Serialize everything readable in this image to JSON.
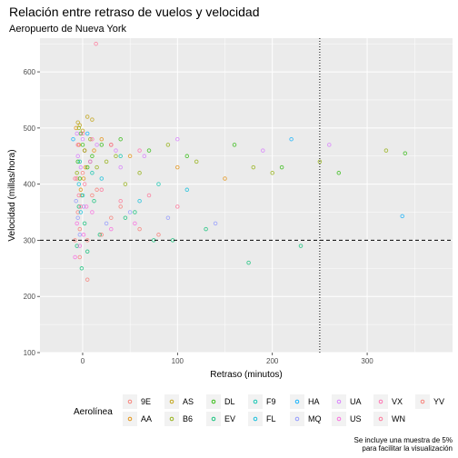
{
  "chart_data": {
    "type": "scatter",
    "title": "Relación entre retraso de vuelos y velocidad",
    "subtitle": "Aeropuerto de Nueva York",
    "xlabel": "Retraso (minutos)",
    "ylabel": "Velocidad (millas/hora)",
    "xlim": [
      -45,
      390
    ],
    "ylim": [
      100,
      660
    ],
    "x_ticks": [
      0,
      100,
      200,
      300
    ],
    "y_ticks": [
      100,
      200,
      300,
      400,
      500,
      600
    ],
    "grid": true,
    "reference_lines": {
      "hline": 300,
      "vline": 250
    },
    "legend": {
      "title": "Aerolínea",
      "position": "bottom",
      "entries": [
        {
          "name": "9E",
          "color": "#F8766D"
        },
        {
          "name": "AA",
          "color": "#E18A00"
        },
        {
          "name": "AS",
          "color": "#BE9C00"
        },
        {
          "name": "B6",
          "color": "#8CAB00"
        },
        {
          "name": "DL",
          "color": "#24B700"
        },
        {
          "name": "EV",
          "color": "#00BE70"
        },
        {
          "name": "F9",
          "color": "#00C1AB"
        },
        {
          "name": "FL",
          "color": "#00BBDA"
        },
        {
          "name": "HA",
          "color": "#00ACFC"
        },
        {
          "name": "MQ",
          "color": "#8B93FF"
        },
        {
          "name": "UA",
          "color": "#D575FE"
        },
        {
          "name": "US",
          "color": "#F962DD"
        },
        {
          "name": "VX",
          "color": "#FF65AC"
        },
        {
          "name": "WN",
          "color": "#FF6C91"
        },
        {
          "name": "YV",
          "color": "#F8766D"
        }
      ]
    },
    "caption": [
      "Se incluye una muestra de 5%",
      "para facilitar la visualización"
    ],
    "series": [
      {
        "name": "9E",
        "points": [
          [
            -5,
            350
          ],
          [
            0,
            420
          ],
          [
            10,
            380
          ],
          [
            30,
            340
          ],
          [
            -8,
            300
          ],
          [
            2,
            460
          ],
          [
            60,
            320
          ],
          [
            -3,
            270
          ],
          [
            15,
            390
          ],
          [
            5,
            230
          ],
          [
            40,
            360
          ],
          [
            80,
            310
          ],
          [
            -6,
            410
          ]
        ]
      },
      {
        "name": "AA",
        "points": [
          [
            -4,
            470
          ],
          [
            3,
            430
          ],
          [
            20,
            480
          ],
          [
            50,
            450
          ],
          [
            -2,
            390
          ],
          [
            8,
            440
          ],
          [
            100,
            430
          ],
          [
            -7,
            500
          ],
          [
            12,
            460
          ],
          [
            150,
            410
          ],
          [
            30,
            470
          ],
          [
            1,
            410
          ]
        ]
      },
      {
        "name": "AS",
        "points": [
          [
            -5,
            510
          ],
          [
            0,
            495
          ],
          [
            5,
            520
          ],
          [
            -3,
            505
          ],
          [
            10,
            515
          ]
        ]
      },
      {
        "name": "B6",
        "points": [
          [
            -6,
            420
          ],
          [
            2,
            460
          ],
          [
            15,
            430
          ],
          [
            35,
            450
          ],
          [
            -1,
            380
          ],
          [
            60,
            420
          ],
          [
            90,
            470
          ],
          [
            120,
            440
          ],
          [
            180,
            430
          ],
          [
            200,
            420
          ],
          [
            250,
            440
          ],
          [
            320,
            460
          ],
          [
            -4,
            500
          ],
          [
            8,
            480
          ],
          [
            45,
            400
          ],
          [
            25,
            440
          ]
        ]
      },
      {
        "name": "DL",
        "points": [
          [
            -5,
            440
          ],
          [
            0,
            470
          ],
          [
            10,
            450
          ],
          [
            40,
            480
          ],
          [
            -3,
            410
          ],
          [
            70,
            460
          ],
          [
            110,
            450
          ],
          [
            160,
            470
          ],
          [
            210,
            430
          ],
          [
            270,
            420
          ],
          [
            340,
            455
          ],
          [
            -2,
            490
          ],
          [
            20,
            470
          ],
          [
            5,
            430
          ]
        ]
      },
      {
        "name": "EV",
        "points": [
          [
            -4,
            360
          ],
          [
            2,
            330
          ],
          [
            18,
            310
          ],
          [
            45,
            340
          ],
          [
            -6,
            290
          ],
          [
            75,
            300
          ],
          [
            130,
            320
          ],
          [
            175,
            260
          ],
          [
            230,
            290
          ],
          [
            -1,
            250
          ],
          [
            12,
            370
          ],
          [
            55,
            350
          ],
          [
            95,
            300
          ],
          [
            5,
            280
          ]
        ]
      },
      {
        "name": "F9",
        "points": [
          [
            -3,
            440
          ],
          [
            10,
            420
          ],
          [
            40,
            450
          ],
          [
            80,
            400
          ]
        ]
      },
      {
        "name": "FL",
        "points": [
          [
            -4,
            400
          ],
          [
            0,
            380
          ],
          [
            20,
            410
          ],
          [
            60,
            370
          ],
          [
            110,
            390
          ],
          [
            -2,
            350
          ]
        ]
      },
      {
        "name": "HA",
        "points": [
          [
            -10,
            480
          ],
          [
            5,
            490
          ],
          [
            220,
            480
          ],
          [
            337,
            343
          ]
        ]
      },
      {
        "name": "MQ",
        "points": [
          [
            -5,
            340
          ],
          [
            1,
            360
          ],
          [
            25,
            330
          ],
          [
            50,
            350
          ],
          [
            -3,
            310
          ],
          [
            90,
            340
          ],
          [
            140,
            330
          ],
          [
            -7,
            370
          ]
        ]
      },
      {
        "name": "UA",
        "points": [
          [
            -5,
            450
          ],
          [
            0,
            480
          ],
          [
            15,
            470
          ],
          [
            35,
            460
          ],
          [
            -2,
            430
          ],
          [
            65,
            450
          ],
          [
            100,
            480
          ],
          [
            190,
            460
          ],
          [
            260,
            470
          ],
          [
            -6,
            490
          ],
          [
            8,
            440
          ],
          [
            40,
            430
          ]
        ]
      },
      {
        "name": "US",
        "points": [
          [
            -6,
            330
          ],
          [
            1,
            310
          ],
          [
            10,
            350
          ],
          [
            30,
            320
          ],
          [
            -3,
            290
          ],
          [
            55,
            330
          ],
          [
            -8,
            270
          ],
          [
            4,
            360
          ]
        ]
      },
      {
        "name": "VX",
        "points": [
          [
            -5,
            470
          ],
          [
            0,
            490
          ],
          [
            10,
            480
          ],
          [
            30,
            470
          ],
          [
            60,
            460
          ]
        ]
      },
      {
        "name": "WN",
        "points": [
          [
            -4,
            380
          ],
          [
            2,
            400
          ],
          [
            20,
            390
          ],
          [
            40,
            370
          ],
          [
            70,
            380
          ],
          [
            100,
            360
          ],
          [
            -2,
            360
          ],
          [
            14,
            650
          ],
          [
            -8,
            410
          ]
        ]
      },
      {
        "name": "YV",
        "points": [
          [
            -3,
            320
          ],
          [
            5,
            300
          ],
          [
            20,
            310
          ]
        ]
      }
    ]
  }
}
